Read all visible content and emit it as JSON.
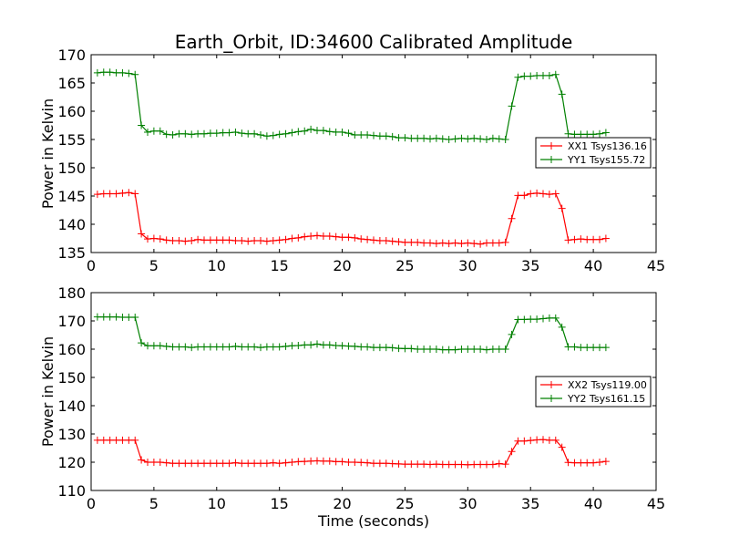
{
  "figure": {
    "title": "Earth_Orbit, ID:34600 Calibrated Amplitude",
    "xlabel": "Time (seconds)"
  },
  "colors": {
    "red": "#ff0000",
    "green": "#008000"
  },
  "chart_data": [
    {
      "type": "line",
      "title": "Earth_Orbit, ID:34600 Calibrated Amplitude",
      "xlabel": "",
      "ylabel": "Power in Kelvin",
      "xlim": [
        0,
        45
      ],
      "ylim": [
        135,
        170
      ],
      "xticks": [
        0,
        5,
        10,
        15,
        20,
        25,
        30,
        35,
        40,
        45
      ],
      "yticks": [
        135,
        140,
        145,
        150,
        155,
        160,
        165,
        170
      ],
      "grid": false,
      "legend_position": "right",
      "x": [
        0.5,
        1.0,
        1.5,
        2.0,
        2.5,
        3.0,
        3.5,
        4.0,
        4.5,
        5.0,
        5.5,
        6.0,
        6.5,
        7.0,
        7.5,
        8.0,
        8.5,
        9.0,
        9.5,
        10.0,
        10.5,
        11.0,
        11.5,
        12.0,
        12.5,
        13.0,
        13.5,
        14.0,
        14.5,
        15.0,
        15.5,
        16.0,
        16.5,
        17.0,
        17.5,
        18.0,
        18.5,
        19.0,
        19.5,
        20.0,
        20.5,
        21.0,
        21.5,
        22.0,
        22.5,
        23.0,
        23.5,
        24.0,
        24.5,
        25.0,
        25.5,
        26.0,
        26.5,
        27.0,
        27.5,
        28.0,
        28.5,
        29.0,
        29.5,
        30.0,
        30.5,
        31.0,
        31.5,
        32.0,
        32.5,
        33.0,
        33.5,
        34.0,
        34.5,
        35.0,
        35.5,
        36.0,
        36.5,
        37.0,
        37.5,
        38.0,
        38.5,
        39.0,
        39.5,
        40.0,
        40.5,
        41.0
      ],
      "series": [
        {
          "name": "XX1 Tsys136.16",
          "color": "#ff0000",
          "values": [
            145.3,
            145.4,
            145.4,
            145.4,
            145.5,
            145.6,
            145.4,
            138.3,
            137.4,
            137.5,
            137.4,
            137.2,
            137.1,
            137.1,
            137.0,
            137.1,
            137.3,
            137.2,
            137.2,
            137.2,
            137.2,
            137.2,
            137.1,
            137.1,
            137.0,
            137.1,
            137.1,
            137.0,
            137.1,
            137.2,
            137.3,
            137.5,
            137.6,
            137.8,
            137.9,
            138.0,
            137.9,
            137.9,
            137.8,
            137.7,
            137.7,
            137.6,
            137.4,
            137.3,
            137.2,
            137.1,
            137.1,
            137.0,
            136.9,
            136.8,
            136.8,
            136.8,
            136.7,
            136.7,
            136.6,
            136.7,
            136.6,
            136.7,
            136.6,
            136.7,
            136.6,
            136.5,
            136.7,
            136.7,
            136.7,
            136.8,
            141.0,
            145.1,
            145.1,
            145.4,
            145.5,
            145.4,
            145.3,
            145.4,
            142.8,
            137.2,
            137.3,
            137.4,
            137.3,
            137.3,
            137.3,
            137.5
          ]
        },
        {
          "name": "YY1 Tsys155.72",
          "color": "#008000",
          "values": [
            166.8,
            166.9,
            166.9,
            166.8,
            166.8,
            166.7,
            166.5,
            157.5,
            156.3,
            156.5,
            156.5,
            155.9,
            155.8,
            156.0,
            156.0,
            155.9,
            156.0,
            156.0,
            156.1,
            156.1,
            156.2,
            156.2,
            156.3,
            156.1,
            156.0,
            156.0,
            155.8,
            155.6,
            155.7,
            155.9,
            156.0,
            156.2,
            156.4,
            156.5,
            156.8,
            156.6,
            156.6,
            156.4,
            156.3,
            156.3,
            156.1,
            155.8,
            155.8,
            155.8,
            155.7,
            155.6,
            155.6,
            155.5,
            155.3,
            155.3,
            155.2,
            155.2,
            155.2,
            155.1,
            155.2,
            155.1,
            155.0,
            155.1,
            155.2,
            155.1,
            155.2,
            155.1,
            155.0,
            155.2,
            155.1,
            155.0,
            160.9,
            166.0,
            166.2,
            166.2,
            166.3,
            166.3,
            166.3,
            166.5,
            163.0,
            156.0,
            155.9,
            155.9,
            155.9,
            155.9,
            156.0,
            156.2
          ]
        }
      ]
    },
    {
      "type": "line",
      "title": "",
      "xlabel": "Time (seconds)",
      "ylabel": "Power in Kelvin",
      "xlim": [
        0,
        45
      ],
      "ylim": [
        110,
        180
      ],
      "xticks": [
        0,
        5,
        10,
        15,
        20,
        25,
        30,
        35,
        40,
        45
      ],
      "yticks": [
        110,
        120,
        130,
        140,
        150,
        160,
        170,
        180
      ],
      "grid": false,
      "legend_position": "right",
      "x": [
        0.5,
        1.0,
        1.5,
        2.0,
        2.5,
        3.0,
        3.5,
        4.0,
        4.5,
        5.0,
        5.5,
        6.0,
        6.5,
        7.0,
        7.5,
        8.0,
        8.5,
        9.0,
        9.5,
        10.0,
        10.5,
        11.0,
        11.5,
        12.0,
        12.5,
        13.0,
        13.5,
        14.0,
        14.5,
        15.0,
        15.5,
        16.0,
        16.5,
        17.0,
        17.5,
        18.0,
        18.5,
        19.0,
        19.5,
        20.0,
        20.5,
        21.0,
        21.5,
        22.0,
        22.5,
        23.0,
        23.5,
        24.0,
        24.5,
        25.0,
        25.5,
        26.0,
        26.5,
        27.0,
        27.5,
        28.0,
        28.5,
        29.0,
        29.5,
        30.0,
        30.5,
        31.0,
        31.5,
        32.0,
        32.5,
        33.0,
        33.5,
        34.0,
        34.5,
        35.0,
        35.5,
        36.0,
        36.5,
        37.0,
        37.5,
        38.0,
        38.5,
        39.0,
        39.5,
        40.0,
        40.5,
        41.0
      ],
      "series": [
        {
          "name": "XX2 Tsys119.00",
          "color": "#ff0000",
          "values": [
            127.8,
            127.8,
            127.8,
            127.8,
            127.8,
            127.8,
            127.8,
            120.8,
            120.0,
            120.0,
            120.0,
            119.8,
            119.6,
            119.6,
            119.6,
            119.6,
            119.6,
            119.6,
            119.6,
            119.6,
            119.6,
            119.6,
            119.8,
            119.6,
            119.6,
            119.6,
            119.6,
            119.6,
            119.8,
            119.6,
            119.8,
            120.0,
            120.2,
            120.3,
            120.4,
            120.5,
            120.4,
            120.4,
            120.2,
            120.2,
            120.0,
            120.0,
            119.9,
            119.8,
            119.6,
            119.6,
            119.6,
            119.5,
            119.4,
            119.3,
            119.3,
            119.3,
            119.3,
            119.2,
            119.3,
            119.2,
            119.2,
            119.2,
            119.2,
            119.1,
            119.2,
            119.2,
            119.2,
            119.2,
            119.5,
            119.3,
            123.8,
            127.5,
            127.5,
            127.7,
            127.9,
            128.0,
            127.8,
            127.8,
            125.3,
            119.9,
            119.8,
            119.8,
            119.8,
            119.8,
            120.0,
            120.3
          ]
        },
        {
          "name": "YY2 Tsys161.15",
          "color": "#008000",
          "values": [
            171.4,
            171.4,
            171.4,
            171.4,
            171.3,
            171.3,
            171.3,
            162.2,
            161.2,
            161.2,
            161.2,
            161.0,
            160.8,
            160.8,
            160.8,
            160.6,
            160.8,
            160.8,
            160.8,
            160.8,
            160.8,
            160.8,
            161.0,
            160.8,
            160.8,
            160.8,
            160.6,
            160.8,
            160.8,
            160.8,
            161.0,
            161.2,
            161.3,
            161.5,
            161.5,
            161.8,
            161.5,
            161.5,
            161.3,
            161.2,
            161.1,
            161.0,
            160.8,
            160.8,
            160.6,
            160.6,
            160.6,
            160.5,
            160.3,
            160.2,
            160.2,
            160.0,
            160.0,
            160.0,
            160.0,
            159.8,
            159.8,
            159.8,
            160.0,
            160.0,
            160.0,
            160.0,
            159.8,
            160.0,
            160.0,
            160.0,
            165.2,
            170.5,
            170.5,
            170.6,
            170.6,
            170.8,
            171.0,
            171.0,
            167.8,
            160.8,
            160.8,
            160.6,
            160.6,
            160.6,
            160.6,
            160.6
          ]
        }
      ]
    }
  ]
}
